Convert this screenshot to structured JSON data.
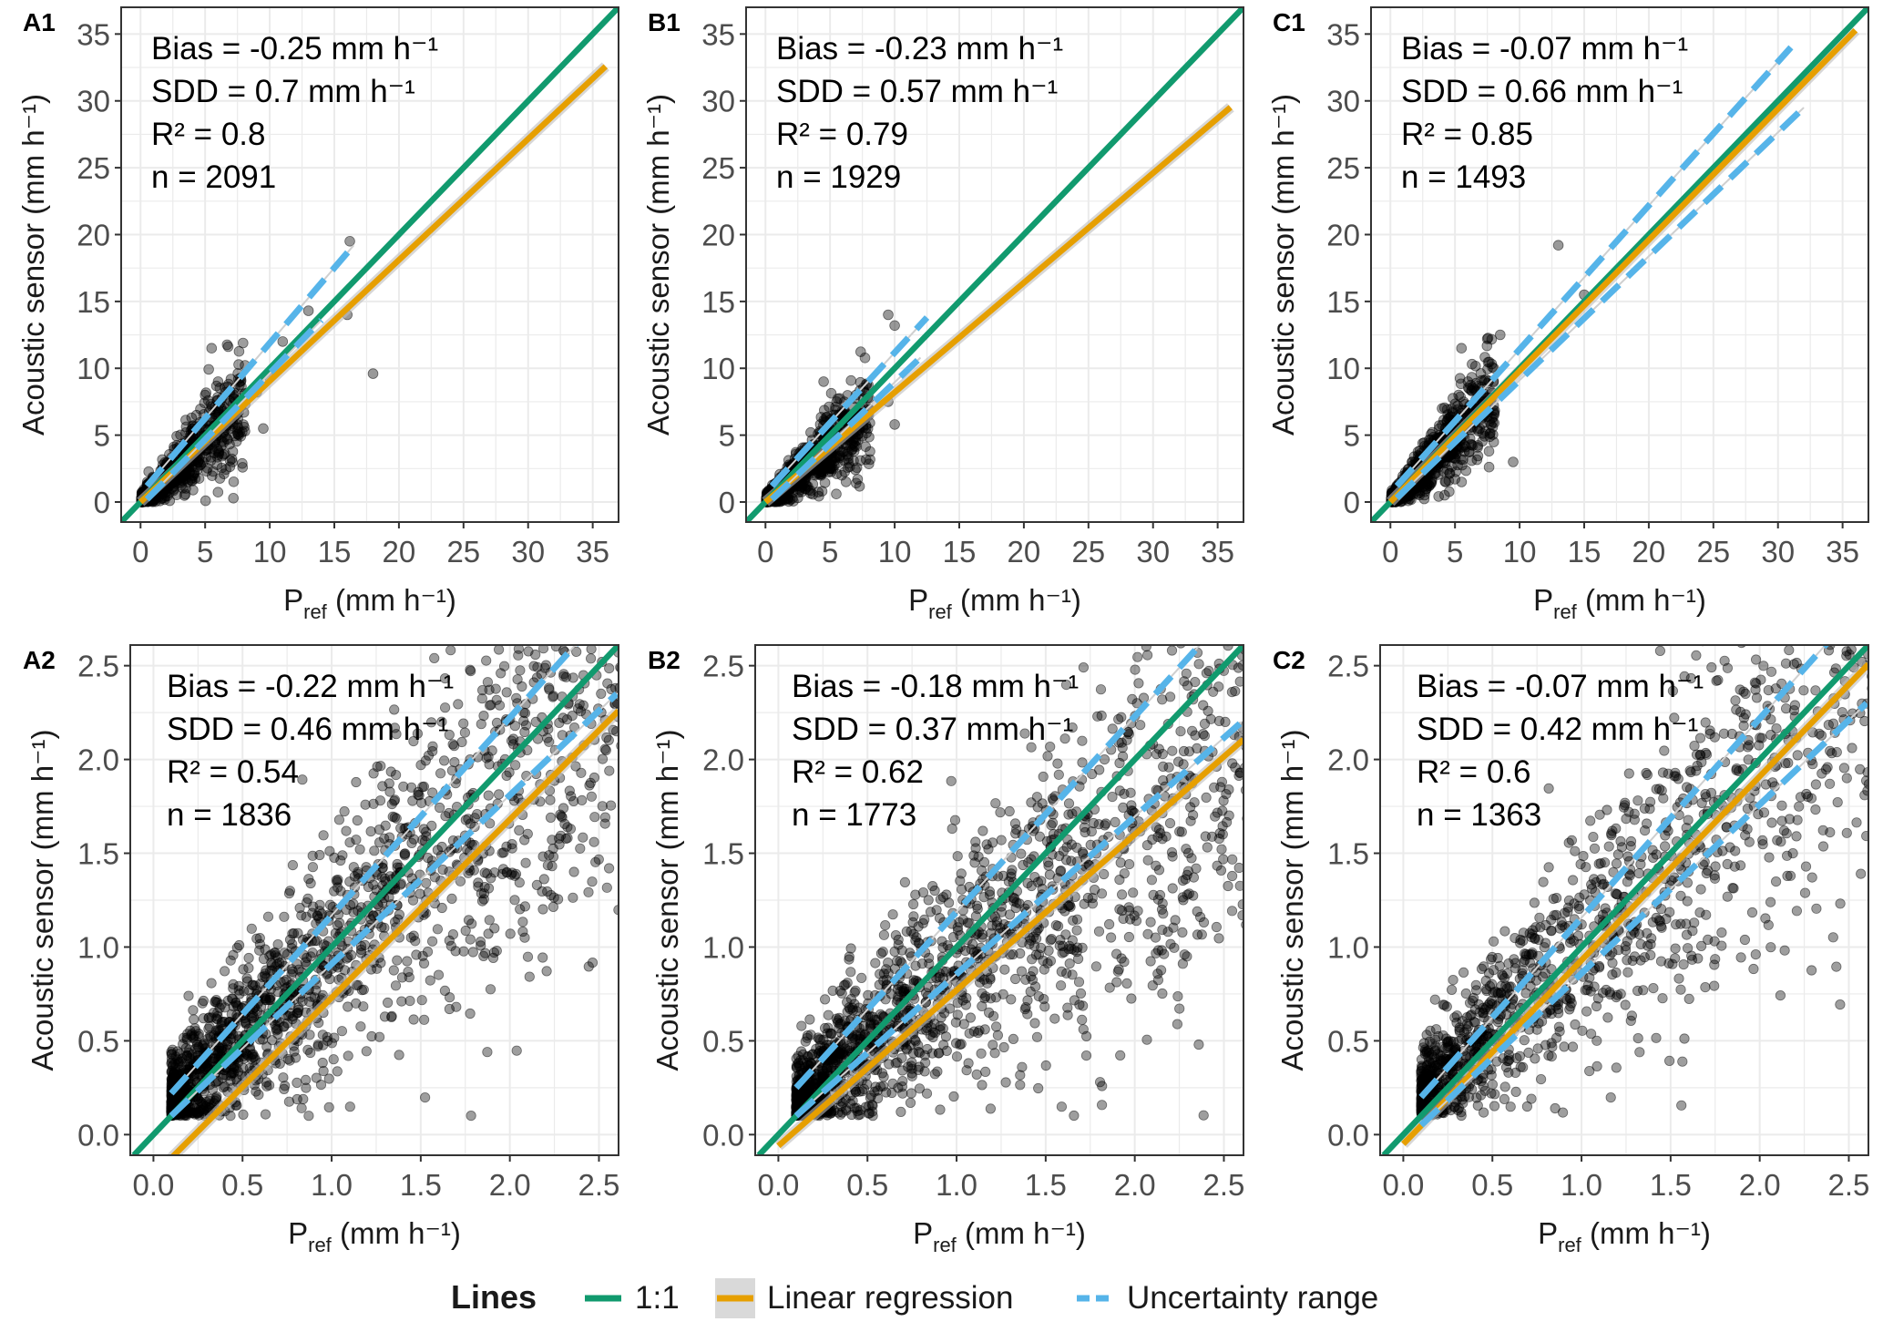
{
  "legend": {
    "title": "Lines",
    "items": [
      {
        "label": "1:1",
        "color": "#119a6e",
        "kind": "solid"
      },
      {
        "label": "Linear regression",
        "color": "#e69f00",
        "kind": "solid-band"
      },
      {
        "label": "Uncertainty range",
        "color": "#56b4e9",
        "kind": "dashed"
      }
    ]
  },
  "colors": {
    "one_to_one": "#119a6e",
    "regression": "#e69f00",
    "uncertainty": "#56b4e9",
    "points": "#000000",
    "grid": "#ebebeb",
    "band": "#bdbdbd"
  },
  "chart_data": [
    {
      "panel": "A1",
      "type": "scatter",
      "ylabel": "Acoustic sensor  (mm h⁻¹)",
      "xlabel": {
        "main": "P",
        "sub": "ref",
        "unit": " (mm h⁻¹)"
      },
      "xlim": [
        -1.5,
        37
      ],
      "ylim": [
        -1.5,
        37
      ],
      "ticks": [
        0,
        5,
        10,
        15,
        20,
        25,
        30,
        35
      ],
      "stats": [
        "Bias = -0.25  mm h⁻¹",
        "SDD = 0.7 mm h⁻¹",
        "R² = 0.8",
        "n = 2091"
      ],
      "n_points": 2091,
      "regression": {
        "slope": 0.905,
        "intercept": 0.0,
        "x_range": [
          0,
          36
        ]
      },
      "uncertainty": {
        "lower": [
          [
            0.5,
            0.2
          ],
          [
            14,
            13.6
          ]
        ],
        "upper": [
          [
            0.5,
            1.2
          ],
          [
            16.5,
            19.2
          ]
        ]
      },
      "sample_points": [
        [
          18,
          9.6
        ],
        [
          16.2,
          19.5
        ],
        [
          16,
          14
        ],
        [
          11,
          12
        ],
        [
          8,
          6.7
        ],
        [
          7.6,
          5
        ],
        [
          9.5,
          5.5
        ],
        [
          6,
          9
        ],
        [
          7,
          9.2
        ],
        [
          5.5,
          11.5
        ],
        [
          5,
          8
        ],
        [
          6.5,
          6.5
        ],
        [
          3.5,
          4
        ],
        [
          13,
          14.3
        ],
        [
          10,
          9.3
        ],
        [
          4.2,
          5.6
        ],
        [
          9,
          8.2
        ]
      ]
    },
    {
      "panel": "B1",
      "type": "scatter",
      "ylabel": "Acoustic sensor  (mm h⁻¹)",
      "xlabel": {
        "main": "P",
        "sub": "ref",
        "unit": " (mm h⁻¹)"
      },
      "xlim": [
        -1.5,
        37
      ],
      "ylim": [
        -1.5,
        37
      ],
      "ticks": [
        0,
        5,
        10,
        15,
        20,
        25,
        30,
        35
      ],
      "stats": [
        "Bias = -0.23  mm h⁻¹",
        "SDD = 0.57 mm h⁻¹",
        "R² = 0.79",
        "n = 1929"
      ],
      "n_points": 1929,
      "regression": {
        "slope": 0.82,
        "intercept": 0.0,
        "x_range": [
          0,
          36
        ]
      },
      "uncertainty": {
        "lower": [
          [
            0.5,
            0.2
          ],
          [
            12,
            10.8
          ]
        ],
        "upper": [
          [
            0.5,
            1.2
          ],
          [
            12.5,
            13.8
          ]
        ]
      },
      "sample_points": [
        [
          10,
          5.8
        ],
        [
          9.5,
          14
        ],
        [
          10,
          13.2
        ],
        [
          9.5,
          7.5
        ],
        [
          7,
          8
        ],
        [
          5,
          6.2
        ],
        [
          4.5,
          9
        ],
        [
          8,
          6.5
        ],
        [
          6,
          5
        ],
        [
          3.5,
          5.2
        ],
        [
          5.5,
          7.5
        ]
      ]
    },
    {
      "panel": "C1",
      "type": "scatter",
      "ylabel": "Acoustic sensor  (mm h⁻¹)",
      "xlabel": {
        "main": "P",
        "sub": "ref",
        "unit": " (mm h⁻¹)"
      },
      "xlim": [
        -1.5,
        37
      ],
      "ylim": [
        -1.5,
        37
      ],
      "ticks": [
        0,
        5,
        10,
        15,
        20,
        25,
        30,
        35
      ],
      "stats": [
        "Bias = -0.07  mm h⁻¹",
        "SDD = 0.66 mm h⁻¹",
        "R² = 0.85",
        "n = 1493"
      ],
      "n_points": 1493,
      "regression": {
        "slope": 0.98,
        "intercept": 0.0,
        "x_range": [
          0,
          36
        ]
      },
      "uncertainty": {
        "lower": [
          [
            0.5,
            0.3
          ],
          [
            32,
            29.5
          ]
        ],
        "upper": [
          [
            0.5,
            1.2
          ],
          [
            31,
            34
          ]
        ]
      },
      "sample_points": [
        [
          13,
          19.2
        ],
        [
          9.5,
          3
        ],
        [
          8.5,
          12.5
        ],
        [
          7.5,
          12.2
        ],
        [
          5.5,
          11.5
        ],
        [
          6,
          9
        ],
        [
          7,
          8
        ],
        [
          8,
          7.2
        ],
        [
          4,
          7
        ],
        [
          15,
          15.5
        ]
      ]
    },
    {
      "panel": "A2",
      "type": "scatter",
      "ylabel": "Acoustic sensor  (mm h⁻¹)",
      "xlabel": {
        "main": "P",
        "sub": "ref",
        "unit": " (mm h⁻¹)"
      },
      "xlim": [
        -0.13,
        2.61
      ],
      "ylim": [
        -0.11,
        2.61
      ],
      "ticks": [
        0.0,
        0.5,
        1.0,
        1.5,
        2.0,
        2.5
      ],
      "stats": [
        "Bias = -0.22  mm h⁻¹",
        "SDD = 0.46 mm h⁻¹",
        "R² = 0.54",
        "n = 1836"
      ],
      "n_points": 1836,
      "regression": {
        "slope": 0.95,
        "intercept": -0.22,
        "x_range": [
          0.0,
          2.61
        ]
      },
      "uncertainty": {
        "lower": [
          [
            0.1,
            0.1
          ],
          [
            2.6,
            2.35
          ]
        ],
        "upper": [
          [
            0.1,
            0.22
          ],
          [
            2.5,
            2.75
          ]
        ]
      }
    },
    {
      "panel": "B2",
      "type": "scatter",
      "ylabel": "Acoustic sensor  (mm h⁻¹)",
      "xlabel": {
        "main": "P",
        "sub": "ref",
        "unit": " (mm h⁻¹)"
      },
      "xlim": [
        -0.13,
        2.61
      ],
      "ylim": [
        -0.11,
        2.61
      ],
      "ticks": [
        0.0,
        0.5,
        1.0,
        1.5,
        2.0,
        2.5
      ],
      "stats": [
        "Bias = -0.18  mm h⁻¹",
        "SDD = 0.37 mm h⁻¹",
        "R² = 0.62",
        "n = 1773"
      ],
      "n_points": 1773,
      "regression": {
        "slope": 0.83,
        "intercept": -0.06,
        "x_range": [
          0.0,
          2.61
        ]
      },
      "uncertainty": {
        "lower": [
          [
            0.1,
            0.1
          ],
          [
            2.6,
            2.2
          ]
        ],
        "upper": [
          [
            0.1,
            0.25
          ],
          [
            2.5,
            2.75
          ]
        ]
      }
    },
    {
      "panel": "C2",
      "type": "scatter",
      "ylabel": "Acoustic sensor  (mm h⁻¹)",
      "xlabel": {
        "main": "P",
        "sub": "ref",
        "unit": " (mm h⁻¹)"
      },
      "xlim": [
        -0.13,
        2.61
      ],
      "ylim": [
        -0.11,
        2.61
      ],
      "ticks": [
        0.0,
        0.5,
        1.0,
        1.5,
        2.0,
        2.5
      ],
      "stats": [
        "Bias = -0.07  mm h⁻¹",
        "SDD = 0.42 mm h⁻¹",
        "R² = 0.6",
        "n = 1363"
      ],
      "n_points": 1363,
      "regression": {
        "slope": 0.98,
        "intercept": -0.05,
        "x_range": [
          0.0,
          2.61
        ]
      },
      "uncertainty": {
        "lower": [
          [
            0.1,
            0.05
          ],
          [
            2.6,
            2.3
          ]
        ],
        "upper": [
          [
            0.1,
            0.2
          ],
          [
            2.5,
            2.75
          ]
        ]
      }
    }
  ]
}
